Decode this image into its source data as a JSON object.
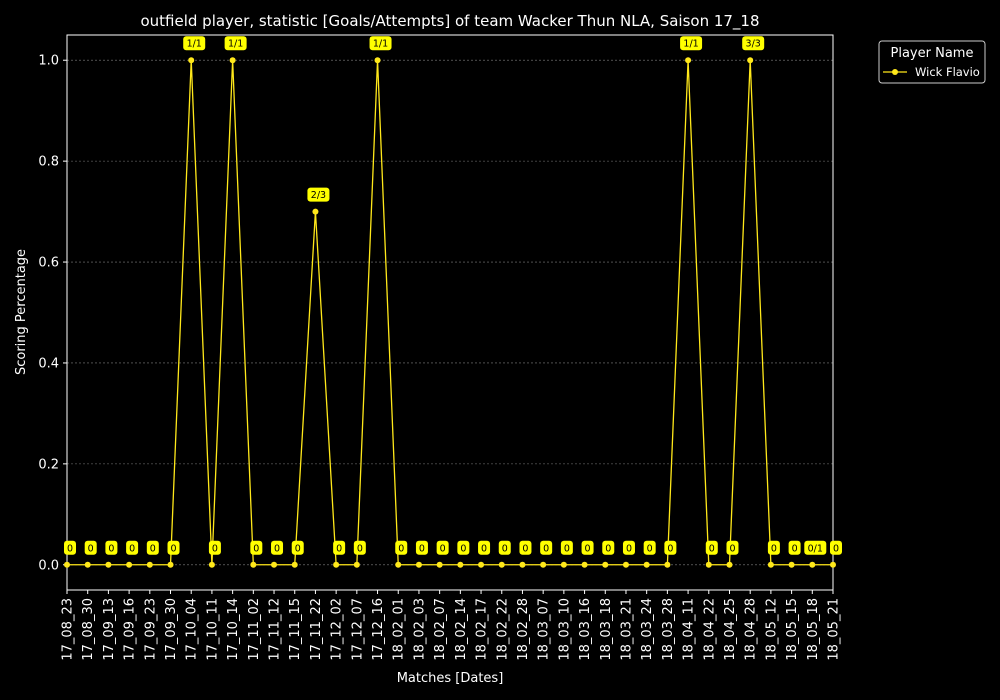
{
  "chart_data": {
    "type": "line",
    "title": "outfield player, statistic [Goals/Attempts] of team Wacker Thun NLA, Saison 17_18",
    "xlabel": "Matches [Dates]",
    "ylabel": "Scoring Percentage",
    "ylim": [
      -0.05,
      1.05
    ],
    "yticks": [
      0.0,
      0.2,
      0.4,
      0.6,
      0.8,
      1.0
    ],
    "ytick_labels": [
      "0.0",
      "0.2",
      "0.4",
      "0.6",
      "0.8",
      "1.0"
    ],
    "grid": true,
    "legend_position": "outside-top-right",
    "categories": [
      "17_08_23",
      "17_08_30",
      "17_09_13",
      "17_09_16",
      "17_09_23",
      "17_09_30",
      "17_10_04",
      "17_10_11",
      "17_10_14",
      "17_11_02",
      "17_11_12",
      "17_11_15",
      "17_11_22",
      "17_12_02",
      "17_12_07",
      "17_12_16",
      "18_02_01",
      "18_02_03",
      "18_02_07",
      "18_02_14",
      "18_02_17",
      "18_02_22",
      "18_02_28",
      "18_03_07",
      "18_03_10",
      "18_03_16",
      "18_03_18",
      "18_03_21",
      "18_03_24",
      "18_03_28",
      "18_04_11",
      "18_04_22",
      "18_04_25",
      "18_04_28",
      "18_05_12",
      "18_05_15",
      "18_05_18",
      "18_05_21"
    ],
    "legend": {
      "title": "Player Name",
      "entries": [
        "Wick Flavio"
      ]
    },
    "series": [
      {
        "name": "Wick Flavio",
        "color": "#ffe81a",
        "values": [
          0,
          0,
          0,
          0,
          0,
          0,
          1.0,
          0,
          1.0,
          0,
          0,
          0,
          0.7,
          0,
          0,
          1.0,
          0,
          0,
          0,
          0,
          0,
          0,
          0,
          0,
          0,
          0,
          0,
          0,
          0,
          0,
          1.0,
          0,
          0,
          1.0,
          0,
          0,
          0,
          0
        ],
        "annotations": [
          "0",
          "0",
          "0",
          "0",
          "0",
          "0",
          "1/1",
          "0",
          "1/1",
          "0",
          "0",
          "0",
          "2/3",
          "0",
          "0",
          "1/1",
          "0",
          "0",
          "0",
          "0",
          "0",
          "0",
          "0",
          "0",
          "0",
          "0",
          "0",
          "0",
          "0",
          "0",
          "1/1",
          "0",
          "0",
          "3/3",
          "0",
          "0",
          "0/1",
          "0"
        ]
      }
    ],
    "colors": {
      "background": "#000000",
      "axes": "#ffffff",
      "grid": "#808080",
      "annotation_box": "#ffff00"
    }
  }
}
